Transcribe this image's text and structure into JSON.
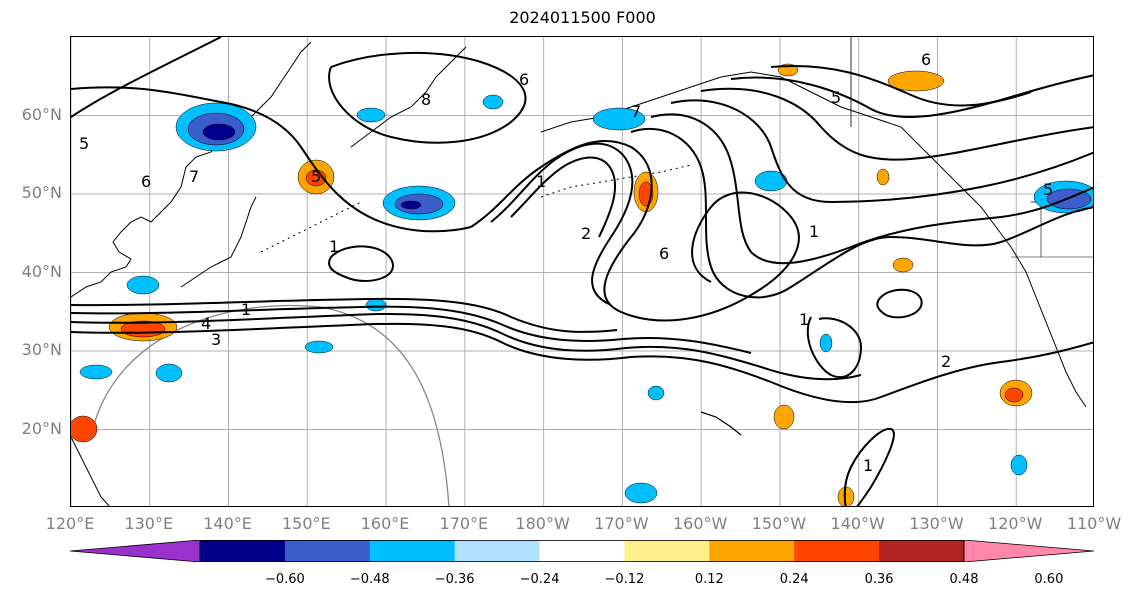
{
  "title": "2024011500 F000",
  "map": {
    "lat_labels": [
      {
        "text": "60°N",
        "lat": 60
      },
      {
        "text": "50°N",
        "lat": 50
      },
      {
        "text": "40°N",
        "lat": 40
      },
      {
        "text": "30°N",
        "lat": 30
      },
      {
        "text": "20°N",
        "lat": 20
      }
    ],
    "lon_labels": [
      {
        "text": "120°E",
        "lon": 120
      },
      {
        "text": "130°E",
        "lon": 130
      },
      {
        "text": "140°E",
        "lon": 140
      },
      {
        "text": "150°E",
        "lon": 150
      },
      {
        "text": "160°E",
        "lon": 160
      },
      {
        "text": "170°E",
        "lon": 170
      },
      {
        "text": "180°W",
        "lon": 180
      },
      {
        "text": "170°W",
        "lon": 190
      },
      {
        "text": "160°W",
        "lon": 200
      },
      {
        "text": "150°W",
        "lon": 210
      },
      {
        "text": "140°W",
        "lon": 220
      },
      {
        "text": "130°W",
        "lon": 230
      },
      {
        "text": "120°W",
        "lon": 240
      },
      {
        "text": "110°W",
        "lon": 250
      }
    ],
    "extent": {
      "lon_min": 120,
      "lon_max": 250,
      "lat_min": 10,
      "lat_max": 70
    },
    "contour_labels": [
      "5",
      "7",
      "8",
      "6",
      "7",
      "5",
      "1",
      "2",
      "6",
      "1",
      "6",
      "5",
      "1",
      "1",
      "2",
      "1",
      "4",
      "3",
      "1",
      "5",
      "6"
    ],
    "gridlines": true
  },
  "colorbar": {
    "colors": [
      "#9932cc",
      "#00008b",
      "#3a5fcd",
      "#00bfff",
      "#b0e2ff",
      "#ffffff",
      "#fff08c",
      "#ffa500",
      "#ff4500",
      "#b22222",
      "#ff88aa"
    ],
    "ticks": [
      "−0.60",
      "−0.48",
      "−0.36",
      "−0.24",
      "−0.12",
      "0.12",
      "0.24",
      "0.36",
      "0.48",
      "0.60"
    ]
  }
}
